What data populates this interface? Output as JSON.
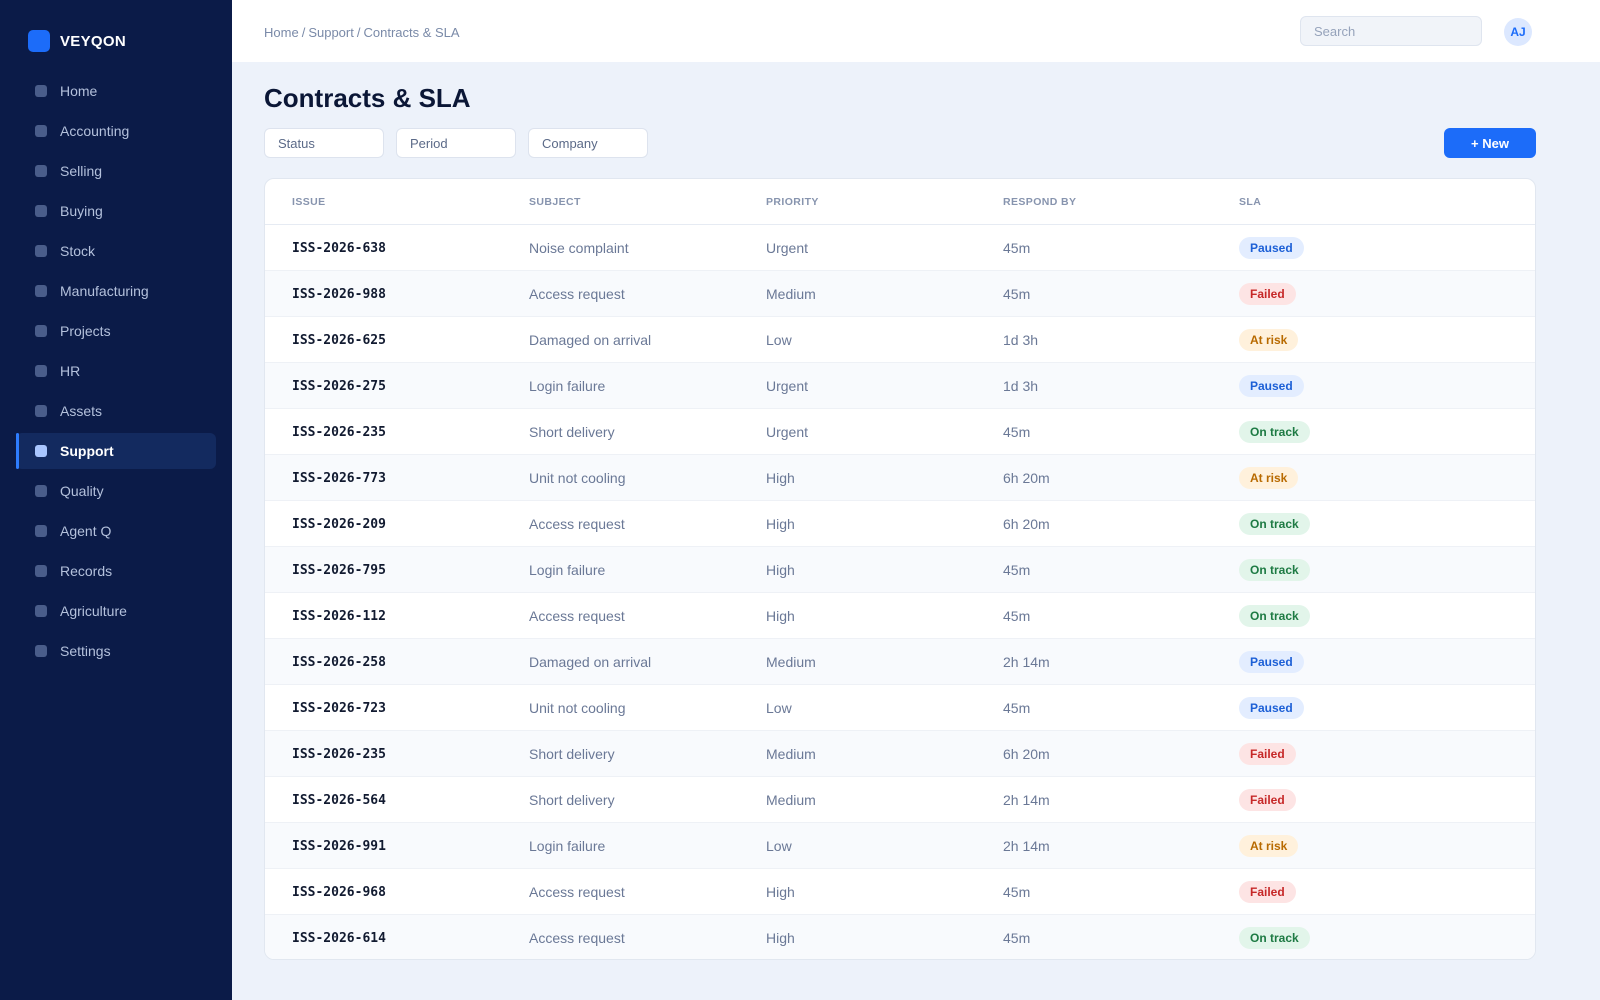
{
  "brand": {
    "name": "VEYQON"
  },
  "sidebar": {
    "items": [
      {
        "label": "Home"
      },
      {
        "label": "Accounting"
      },
      {
        "label": "Selling"
      },
      {
        "label": "Buying"
      },
      {
        "label": "Stock"
      },
      {
        "label": "Manufacturing"
      },
      {
        "label": "Projects"
      },
      {
        "label": "HR"
      },
      {
        "label": "Assets"
      },
      {
        "label": "Support",
        "active": true
      },
      {
        "label": "Quality"
      },
      {
        "label": "Agent Q"
      },
      {
        "label": "Records"
      },
      {
        "label": "Agriculture"
      },
      {
        "label": "Settings"
      }
    ]
  },
  "topbar": {
    "breadcrumb": [
      "Home",
      "Support",
      "Contracts & SLA"
    ],
    "search_placeholder": "Search",
    "avatar_initials": "AJ"
  },
  "page": {
    "title": "Contracts & SLA",
    "filters": [
      "Status",
      "Period",
      "Company"
    ],
    "new_button": "+ New"
  },
  "table": {
    "columns": [
      "ISSUE",
      "SUBJECT",
      "PRIORITY",
      "RESPOND BY",
      "SLA"
    ],
    "rows": [
      {
        "issue": "ISS-2026-638",
        "subject": "Noise complaint",
        "priority": "Urgent",
        "respond_by": "45m",
        "sla": "Paused"
      },
      {
        "issue": "ISS-2026-988",
        "subject": "Access request",
        "priority": "Medium",
        "respond_by": "45m",
        "sla": "Failed"
      },
      {
        "issue": "ISS-2026-625",
        "subject": "Damaged on arrival",
        "priority": "Low",
        "respond_by": "1d 3h",
        "sla": "At risk"
      },
      {
        "issue": "ISS-2026-275",
        "subject": "Login failure",
        "priority": "Urgent",
        "respond_by": "1d 3h",
        "sla": "Paused"
      },
      {
        "issue": "ISS-2026-235",
        "subject": "Short delivery",
        "priority": "Urgent",
        "respond_by": "45m",
        "sla": "On track"
      },
      {
        "issue": "ISS-2026-773",
        "subject": "Unit not cooling",
        "priority": "High",
        "respond_by": "6h 20m",
        "sla": "At risk"
      },
      {
        "issue": "ISS-2026-209",
        "subject": "Access request",
        "priority": "High",
        "respond_by": "6h 20m",
        "sla": "On track"
      },
      {
        "issue": "ISS-2026-795",
        "subject": "Login failure",
        "priority": "High",
        "respond_by": "45m",
        "sla": "On track"
      },
      {
        "issue": "ISS-2026-112",
        "subject": "Access request",
        "priority": "High",
        "respond_by": "45m",
        "sla": "On track"
      },
      {
        "issue": "ISS-2026-258",
        "subject": "Damaged on arrival",
        "priority": "Medium",
        "respond_by": "2h 14m",
        "sla": "Paused"
      },
      {
        "issue": "ISS-2026-723",
        "subject": "Unit not cooling",
        "priority": "Low",
        "respond_by": "45m",
        "sla": "Paused"
      },
      {
        "issue": "ISS-2026-235",
        "subject": "Short delivery",
        "priority": "Medium",
        "respond_by": "6h 20m",
        "sla": "Failed"
      },
      {
        "issue": "ISS-2026-564",
        "subject": "Short delivery",
        "priority": "Medium",
        "respond_by": "2h 14m",
        "sla": "Failed"
      },
      {
        "issue": "ISS-2026-991",
        "subject": "Login failure",
        "priority": "Low",
        "respond_by": "2h 14m",
        "sla": "At risk"
      },
      {
        "issue": "ISS-2026-968",
        "subject": "Access request",
        "priority": "High",
        "respond_by": "45m",
        "sla": "Failed"
      },
      {
        "issue": "ISS-2026-614",
        "subject": "Access request",
        "priority": "High",
        "respond_by": "45m",
        "sla": "On track"
      }
    ]
  },
  "sla_colors": {
    "Paused": {
      "bg": "#e3edff",
      "fg": "#1c5fd6"
    },
    "Failed": {
      "bg": "#fde4e4",
      "fg": "#c62828"
    },
    "At risk": {
      "bg": "#fff1dc",
      "fg": "#b86a00"
    },
    "On track": {
      "bg": "#e2f5ea",
      "fg": "#1d7a43"
    }
  },
  "colors": {
    "sidebar_bg": "#0b1b48",
    "accent": "#1c6cf9",
    "page_bg": "#edf2fa"
  }
}
